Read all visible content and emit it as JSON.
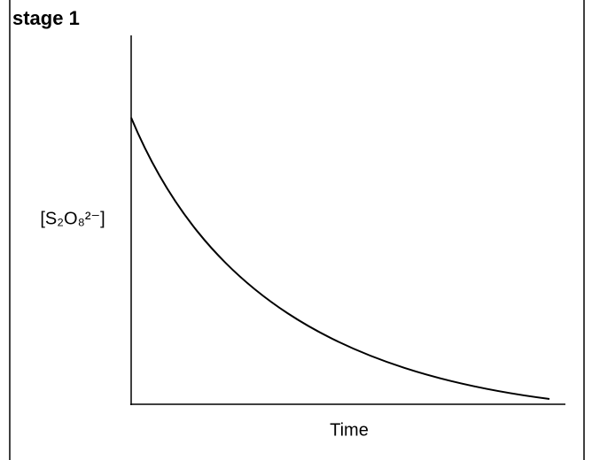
{
  "header": {
    "title": "stage 1"
  },
  "chart": {
    "y_label": "[S₂O₈²⁻]",
    "x_label": "Time"
  }
}
